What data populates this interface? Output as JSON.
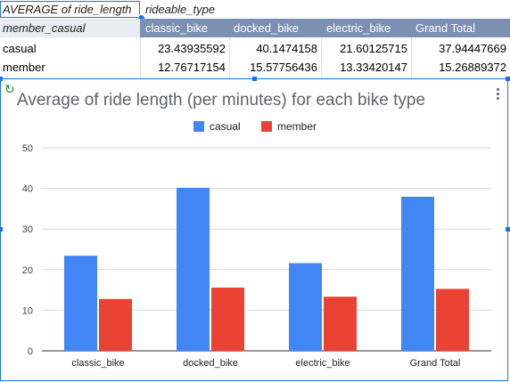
{
  "pivot": {
    "corner_label": "AVERAGE of ride_length",
    "column_field": "rideable_type",
    "row_field": "member_casual",
    "columns": [
      "classic_bike",
      "docked_bike",
      "electric_bike",
      "Grand Total"
    ],
    "rows": [
      {
        "label": "casual",
        "values": [
          "23.43935592",
          "40.1474158",
          "21.60125715",
          "37.94447669"
        ]
      },
      {
        "label": "member",
        "values": [
          "12.76717154",
          "15.57756436",
          "13.33420147",
          "15.26889372"
        ]
      }
    ]
  },
  "chart": {
    "refresh_icon": "refresh-icon",
    "menu_icon": "more-vert-icon"
  },
  "chart_data": {
    "type": "bar",
    "title": "Average of ride length (per minutes) for each bike type",
    "categories": [
      "classic_bike",
      "docked_bike",
      "electric_bike",
      "Grand Total"
    ],
    "series": [
      {
        "name": "casual",
        "color": "#4285f4",
        "values": [
          23.43935592,
          40.1474158,
          21.60125715,
          37.94447669
        ]
      },
      {
        "name": "member",
        "color": "#ea4335",
        "values": [
          12.76717154,
          15.57756436,
          13.33420147,
          15.26889372
        ]
      }
    ],
    "ylim": [
      0,
      50
    ],
    "yticks": [
      0,
      10,
      20,
      30,
      40,
      50
    ],
    "grid": true,
    "legend": "top-center",
    "xlabel": "",
    "ylabel": ""
  }
}
